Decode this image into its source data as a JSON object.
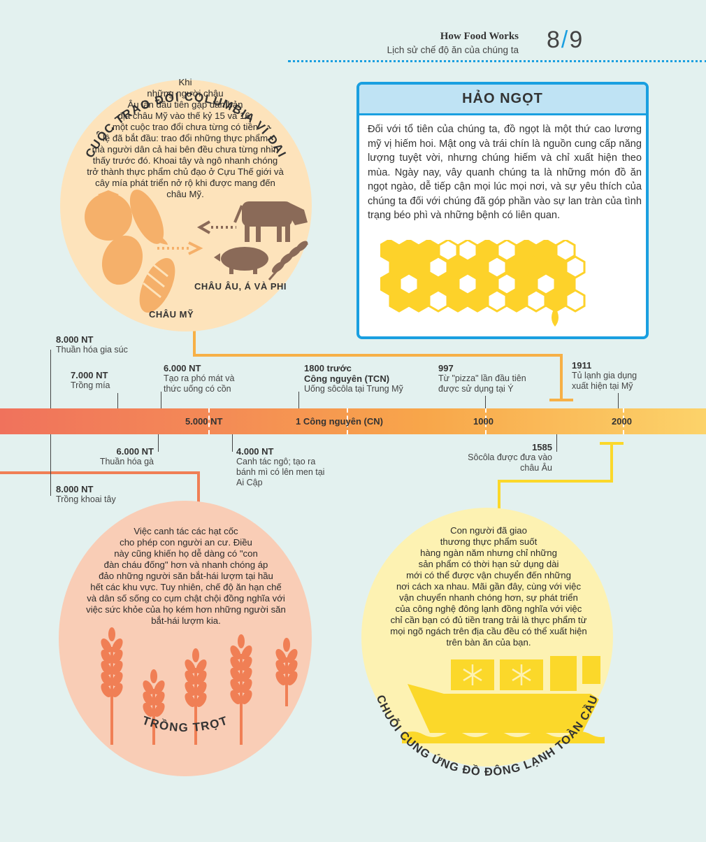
{
  "header": {
    "book": "How Food Works",
    "subtitle": "Lịch sử chế độ ăn của chúng ta",
    "page_current": "8",
    "page_sep": "/",
    "page_total": "9"
  },
  "columbian": {
    "title": "CUỘC TRAO ĐỔI COLUMBIA VĨ ĐẠI",
    "text": "Khi\nnhững người châu\nÂu lần đầu tiên gặp dân bản\nđịa châu Mỹ vào thế kỷ 15 và 16,\nmột cuộc trao đổi chưa từng có tiền\nlệ đã bắt đầu: trao đổi những thực phẩm\nmà người dân cả hai bên đều chưa từng nhìn\nthấy trước đó. Khoai tây và ngô nhanh chóng\ntrở thành thực phẩm chủ đạo ở Cựu Thế giới và\ncây mía phát triển nở rộ khi được mang đến\nchâu Mỹ.",
    "label_old_world": "CHÂU ÂU, Á VÀ PHI",
    "label_americas": "CHÂU MỸ"
  },
  "sweet": {
    "title": "HẢO NGỌT",
    "text": "Đối với tổ tiên của chúng ta, đồ ngọt là một thứ cao lương mỹ vị hiếm hoi. Mật ong và trái chín là nguồn cung cấp năng lượng tuyệt vời, nhưng chúng hiếm và chỉ xuất hiện theo mùa. Ngày nay, vây quanh chúng ta là những món đồ ăn ngọt ngào, dễ tiếp cận mọi lúc mọi nơi, và sự yêu thích của chúng ta đối với chúng đã góp phần vào sự lan tràn của tình trạng béo phì và những bệnh có liên quan."
  },
  "timeline": {
    "eras": [
      "5.000 NT",
      "1 Công nguyên (CN)",
      "1000",
      "2000"
    ],
    "events_above": [
      {
        "date": "8.000 NT",
        "desc": "Thuần hóa gia súc"
      },
      {
        "date": "7.000 NT",
        "desc": "Trồng mía"
      },
      {
        "date": "6.000 NT",
        "desc": "Tạo ra phó mát và\nthức uống có cồn"
      },
      {
        "date": "1800 trước\nCông nguyên (TCN)",
        "desc": "Uống sôcôla tại Trung Mỹ"
      },
      {
        "date": "997",
        "desc": "Từ \"pizza\" lần đầu tiên\nđược sử dụng tại Ý"
      },
      {
        "date": "1911",
        "desc": "Tủ lạnh gia dụng\nxuất hiện tại Mỹ"
      }
    ],
    "events_below": [
      {
        "date": "6.000 NT",
        "desc": "Thuần hóa gà"
      },
      {
        "date": "4.000 NT",
        "desc": "Canh tác ngô; tạo ra\nbánh mì có lên men tại\nAi Cập"
      },
      {
        "date": "1585",
        "desc": "Sôcôla được đưa vào\nchâu Âu"
      },
      {
        "date": "8.000 NT",
        "desc": "Trồng khoai tây"
      }
    ]
  },
  "farming": {
    "title": "TRỒNG TRỌT",
    "text": "Việc canh tác các hạt cốc\ncho phép con người an cư. Điều\nnày cũng khiến họ dễ dàng có \"con\nđàn cháu đống\" hơn và nhanh chóng áp\nđảo những người săn bắt-hái lượm tại hầu\nhết các khu vực. Tuy nhiên, chế độ ăn hạn chế\nvà dân số sống co cụm chật chội đồng nghĩa với\nviệc sức khỏe của họ kém hơn những người săn\nbắt-hái lượm kia."
  },
  "coldchain": {
    "title": "CHUỖI CUNG ỨNG ĐỒ ĐÔNG LẠNH TOÀN CẦU",
    "text": "Con người đã giao\nthương thực phẩm suốt\nhàng ngàn năm nhưng chỉ những\nsản phẩm có thời hạn sử dụng dài\nmới có thể được vận chuyển đến những\nnơi cách xa nhau. Mãi gần đây, cùng với việc\nvận chuyển nhanh chóng hơn, sự phát triển\ncủa công nghệ đông lạnh đồng nghĩa với việc\nchỉ cần bạn có đủ tiền trang trải là thực phẩm từ\nmọi ngõ ngách trên địa cầu đều có thể xuất hiện\ntrên bàn ăn của bạn."
  },
  "colors": {
    "accent_blue": "#1a9fe0",
    "icon_orange": "#f5b06a",
    "icon_brown": "#8a6a58",
    "honey": "#fdd22a",
    "wheat": "#f07f55",
    "ship": "#fbd82a"
  }
}
